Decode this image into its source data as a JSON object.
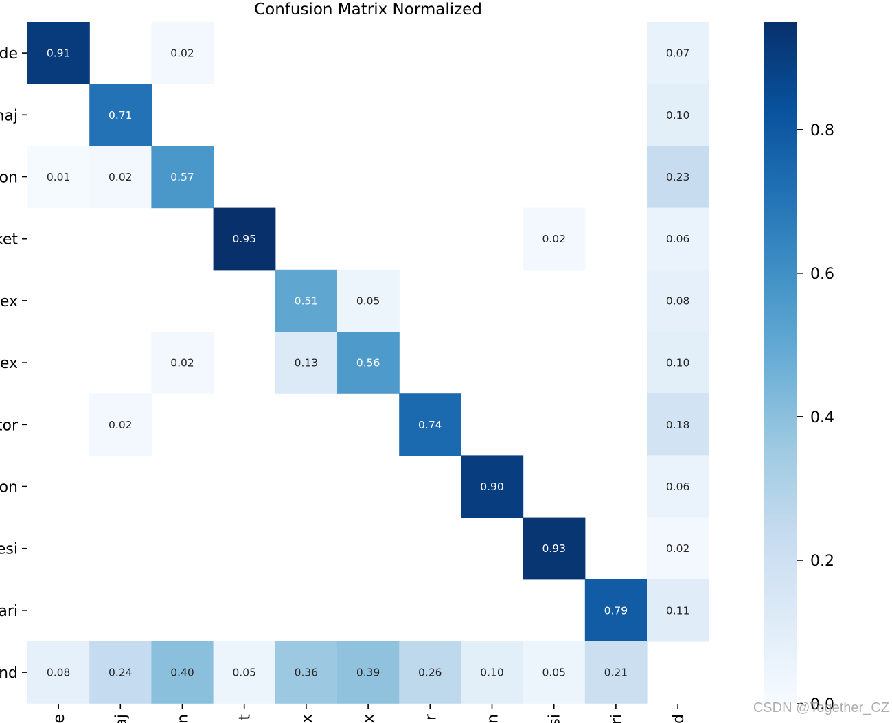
{
  "chart_data": {
    "type": "heatmap",
    "title": "Confusion Matrix Normalized",
    "row_labels": [
      "de",
      "naj",
      "on",
      "ket",
      "ex",
      "ex",
      "tor",
      "on",
      "esi",
      "ari",
      "nd"
    ],
    "col_labels": [
      "e",
      "aj",
      "n",
      "t",
      "x",
      "x",
      "r",
      "n",
      "si",
      "ri",
      "d"
    ],
    "matrix": [
      [
        0.91,
        null,
        0.02,
        null,
        null,
        null,
        null,
        null,
        null,
        null,
        0.07
      ],
      [
        null,
        0.71,
        null,
        null,
        null,
        null,
        null,
        null,
        null,
        null,
        0.1
      ],
      [
        0.01,
        0.02,
        0.57,
        null,
        null,
        null,
        null,
        null,
        null,
        null,
        0.23
      ],
      [
        null,
        null,
        null,
        0.95,
        null,
        null,
        null,
        null,
        0.02,
        null,
        0.06
      ],
      [
        null,
        null,
        null,
        null,
        0.51,
        0.05,
        null,
        null,
        null,
        null,
        0.08
      ],
      [
        null,
        null,
        0.02,
        null,
        0.13,
        0.56,
        null,
        null,
        null,
        null,
        0.1
      ],
      [
        null,
        0.02,
        null,
        null,
        null,
        null,
        0.74,
        null,
        null,
        null,
        0.18
      ],
      [
        null,
        null,
        null,
        null,
        null,
        null,
        null,
        0.9,
        null,
        null,
        0.06
      ],
      [
        null,
        null,
        null,
        null,
        null,
        null,
        null,
        null,
        0.93,
        null,
        0.02
      ],
      [
        null,
        null,
        null,
        null,
        null,
        null,
        null,
        null,
        null,
        0.79,
        0.11
      ],
      [
        0.08,
        0.24,
        0.4,
        0.05,
        0.36,
        0.39,
        0.26,
        0.1,
        0.05,
        0.21,
        null
      ]
    ],
    "colorbar": {
      "min": 0.0,
      "max": 0.95,
      "ticks": [
        0.0,
        0.2,
        0.4,
        0.6,
        0.8
      ],
      "tick_labels": [
        "0.0",
        "0.2",
        "0.4",
        "0.6",
        "0.8"
      ],
      "colormap": "Blues"
    },
    "value_format": "2 decimals"
  },
  "watermark": "CSDN @Together_CZ"
}
